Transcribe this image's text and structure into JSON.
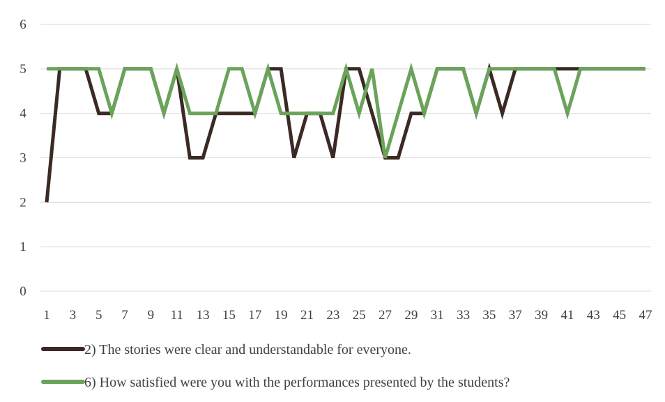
{
  "chart_data": {
    "type": "line",
    "x": [
      1,
      2,
      3,
      4,
      5,
      6,
      7,
      8,
      9,
      10,
      11,
      12,
      13,
      14,
      15,
      16,
      17,
      18,
      19,
      20,
      21,
      22,
      23,
      24,
      25,
      26,
      27,
      28,
      29,
      30,
      31,
      32,
      33,
      34,
      35,
      36,
      37,
      38,
      39,
      40,
      41,
      42,
      43,
      44,
      45,
      46,
      47
    ],
    "x_tick_labels": [
      "1",
      "3",
      "5",
      "7",
      "9",
      "11",
      "13",
      "15",
      "17",
      "19",
      "21",
      "23",
      "25",
      "27",
      "29",
      "31",
      "33",
      "35",
      "37",
      "39",
      "41",
      "43",
      "45",
      "47"
    ],
    "y_tick_labels": [
      "0",
      "1",
      "2",
      "3",
      "4",
      "5",
      "6"
    ],
    "ylim": [
      0,
      6
    ],
    "grid": true,
    "legend_position": "bottom",
    "series": [
      {
        "name": "2) The stories were clear and understandable for everyone.",
        "color": "#3b2a24",
        "values": [
          2,
          5,
          5,
          5,
          4,
          4,
          5,
          5,
          5,
          4,
          5,
          3,
          3,
          4,
          4,
          4,
          4,
          5,
          5,
          3,
          4,
          4,
          3,
          5,
          5,
          4,
          3,
          3,
          4,
          4,
          5,
          5,
          5,
          4,
          5,
          4,
          5,
          5,
          5,
          5,
          5,
          5,
          5,
          5,
          5,
          5,
          5
        ]
      },
      {
        "name": "6) How satisfied were you with the performances presented by the students?",
        "color": "#6aa35a",
        "values": [
          5,
          5,
          5,
          5,
          5,
          4,
          5,
          5,
          5,
          4,
          5,
          4,
          4,
          4,
          5,
          5,
          4,
          5,
          4,
          4,
          4,
          4,
          4,
          5,
          4,
          5,
          3,
          4,
          5,
          4,
          5,
          5,
          5,
          4,
          5,
          5,
          5,
          5,
          5,
          5,
          4,
          5,
          5,
          5,
          5,
          5,
          5
        ]
      }
    ]
  }
}
